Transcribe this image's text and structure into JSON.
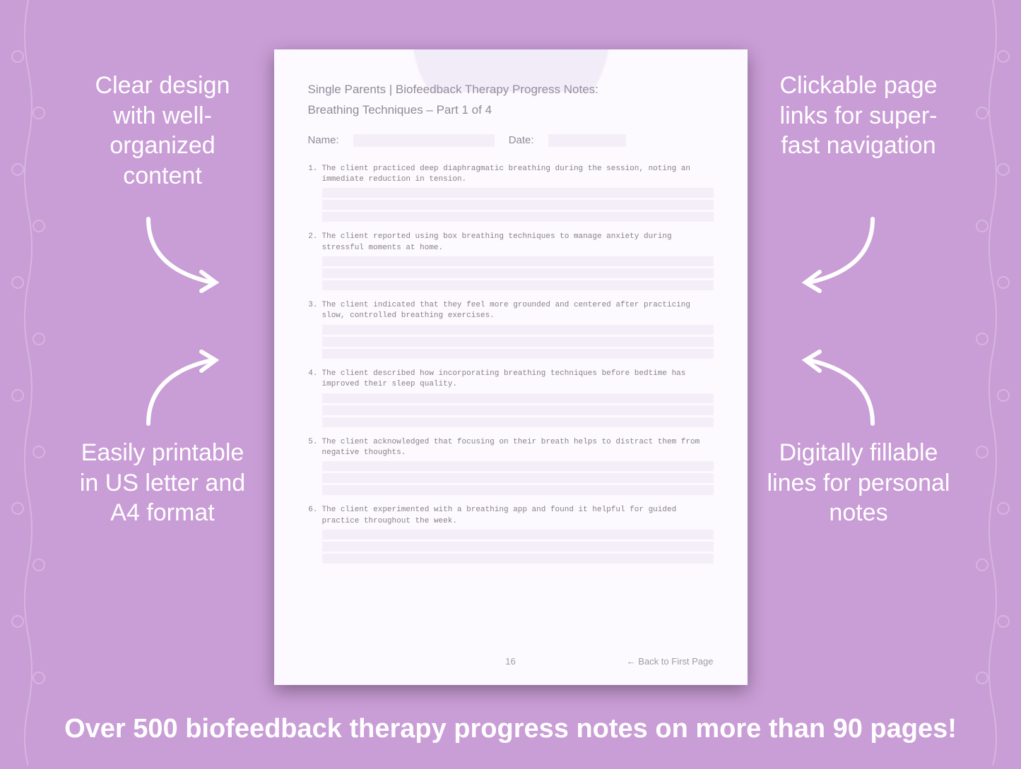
{
  "colors": {
    "background": "#c99dd6",
    "callout_text": "#ffffff",
    "page_bg": "#fcfaff",
    "page_text": "#918b98",
    "note_text": "#888088",
    "fill_bg": "#f4eef9",
    "shadow": "rgba(0,0,0,0.35)"
  },
  "callouts": {
    "top_left": "Clear design with well-organized content",
    "top_right": "Clickable page links for super-fast navigation",
    "bottom_left": "Easily printable in US letter and A4 format",
    "bottom_right": "Digitally fillable lines for personal notes"
  },
  "bottom_banner": "Over 500 biofeedback therapy progress notes on more than 90 pages!",
  "page": {
    "title_line1": "Single Parents | Biofeedback Therapy Progress Notes:",
    "title_line2": "Breathing Techniques  – Part 1 of 4",
    "name_label": "Name:",
    "date_label": "Date:",
    "page_number": "16",
    "back_link": "← Back to First Page",
    "notes": [
      {
        "n": "1.",
        "t": "The client practiced deep diaphragmatic breathing during the session, noting an immediate reduction in tension."
      },
      {
        "n": "2.",
        "t": "The client reported using box breathing techniques to manage anxiety during stressful moments at home."
      },
      {
        "n": "3.",
        "t": "The client indicated that they feel more grounded and centered after practicing slow, controlled breathing exercises."
      },
      {
        "n": "4.",
        "t": "The client described how incorporating breathing techniques before bedtime has improved their sleep quality."
      },
      {
        "n": "5.",
        "t": "The client acknowledged that focusing on their breath helps to distract them from negative thoughts."
      },
      {
        "n": "6.",
        "t": "The client experimented with a breathing app and found it helpful for guided practice throughout the week."
      }
    ]
  }
}
